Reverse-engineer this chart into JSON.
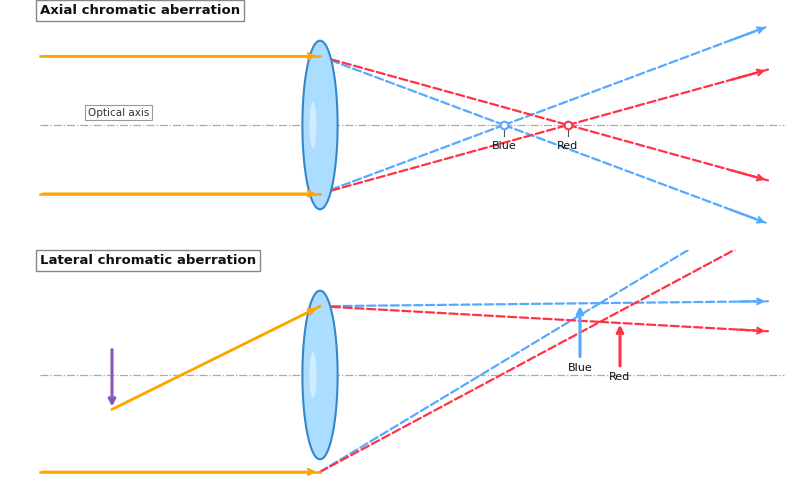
{
  "bg_color": "#ffffff",
  "orange": "#FFA500",
  "blue_ray": "#55aaff",
  "red_ray": "#ff3344",
  "purple": "#8855bb",
  "axis_color": "#aaaaaa",
  "lens_color_edge": "#3388cc",
  "lens_color_center": "#aaddff",
  "text_color": "#111111",
  "title1": "Axial chromatic aberration",
  "title2": "Lateral chromatic aberration",
  "axis_label": "Optical axis",
  "figsize": [
    8.0,
    5.0
  ],
  "dpi": 100
}
